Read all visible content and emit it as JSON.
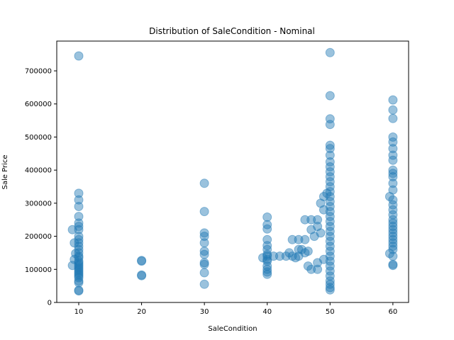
{
  "chart_data": {
    "type": "scatter",
    "title": "Distribution of SaleCondition - Nominal",
    "xlabel": "SaleCondition",
    "ylabel": "Sale Price",
    "xlim": [
      6.5,
      62.5
    ],
    "ylim": [
      0,
      790000
    ],
    "xticks": [
      10,
      20,
      30,
      40,
      50,
      60
    ],
    "yticks": [
      0,
      100000,
      200000,
      300000,
      400000,
      500000,
      600000,
      700000
    ],
    "grid": false,
    "legend": "none",
    "point_color": "#1f77b4",
    "point_alpha": 0.45,
    "series": [
      {
        "points": [
          [
            10,
            745000
          ],
          [
            10,
            330000
          ],
          [
            10,
            310000
          ],
          [
            10,
            290000
          ],
          [
            10,
            260000
          ],
          [
            10,
            240000
          ],
          [
            10,
            230000
          ],
          [
            10,
            220000
          ],
          [
            9,
            220000
          ],
          [
            10,
            200000
          ],
          [
            10,
            190000
          ],
          [
            10,
            180000
          ],
          [
            9.3,
            180000
          ],
          [
            10,
            170000
          ],
          [
            10,
            160000
          ],
          [
            10,
            150000
          ],
          [
            9.5,
            148000
          ],
          [
            10,
            140000
          ],
          [
            10,
            135000
          ],
          [
            9.3,
            130000
          ],
          [
            10,
            125000
          ],
          [
            10,
            120000
          ],
          [
            10,
            115000
          ],
          [
            9,
            112000
          ],
          [
            10,
            110000
          ],
          [
            10,
            105000
          ],
          [
            10,
            100000
          ],
          [
            10,
            95000
          ],
          [
            10,
            90000
          ],
          [
            10,
            85000
          ],
          [
            10,
            80000
          ],
          [
            10,
            75000
          ],
          [
            10,
            65000
          ],
          [
            10,
            60000
          ],
          [
            10,
            37000
          ],
          [
            10,
            35000
          ],
          [
            20,
            127000
          ],
          [
            20,
            125000
          ],
          [
            20,
            83000
          ],
          [
            20,
            81000
          ],
          [
            30,
            360000
          ],
          [
            30,
            275000
          ],
          [
            30,
            210000
          ],
          [
            30,
            200000
          ],
          [
            30,
            180000
          ],
          [
            30,
            155000
          ],
          [
            30,
            145000
          ],
          [
            30,
            120000
          ],
          [
            30,
            115000
          ],
          [
            30,
            90000
          ],
          [
            30,
            55000
          ],
          [
            40,
            258000
          ],
          [
            40,
            235000
          ],
          [
            40,
            222000
          ],
          [
            40,
            190000
          ],
          [
            40,
            172000
          ],
          [
            40,
            160000
          ],
          [
            40,
            145000
          ],
          [
            40,
            140000
          ],
          [
            39.3,
            135000
          ],
          [
            40,
            130000
          ],
          [
            40,
            125000
          ],
          [
            40,
            110000
          ],
          [
            40,
            100000
          ],
          [
            40,
            92000
          ],
          [
            40,
            85000
          ],
          [
            41,
            140000
          ],
          [
            42,
            140000
          ],
          [
            43,
            140000
          ],
          [
            44,
            140000
          ],
          [
            45,
            140000
          ],
          [
            43.5,
            150000
          ],
          [
            44.5,
            135000
          ],
          [
            44,
            190000
          ],
          [
            45,
            190000
          ],
          [
            46,
            190000
          ],
          [
            45.5,
            160000
          ],
          [
            46.5,
            155000
          ],
          [
            46,
            150000
          ],
          [
            45,
            160000
          ],
          [
            46,
            250000
          ],
          [
            47,
            250000
          ],
          [
            48,
            250000
          ],
          [
            47,
            220000
          ],
          [
            48,
            230000
          ],
          [
            47.5,
            200000
          ],
          [
            48.5,
            210000
          ],
          [
            47,
            100000
          ],
          [
            48,
            100000
          ],
          [
            46.5,
            110000
          ],
          [
            48,
            120000
          ],
          [
            49,
            130000
          ],
          [
            48.5,
            300000
          ],
          [
            49,
            320000
          ],
          [
            49.5,
            330000
          ],
          [
            49,
            280000
          ],
          [
            50,
            755000
          ],
          [
            50,
            625000
          ],
          [
            50,
            555000
          ],
          [
            50,
            538000
          ],
          [
            50,
            475000
          ],
          [
            50,
            465000
          ],
          [
            50,
            445000
          ],
          [
            50,
            425000
          ],
          [
            50,
            410000
          ],
          [
            50,
            395000
          ],
          [
            50,
            380000
          ],
          [
            50,
            365000
          ],
          [
            50,
            350000
          ],
          [
            50,
            335000
          ],
          [
            50,
            320000
          ],
          [
            50,
            305000
          ],
          [
            50,
            290000
          ],
          [
            50,
            275000
          ],
          [
            50,
            260000
          ],
          [
            50,
            245000
          ],
          [
            50,
            230000
          ],
          [
            50,
            215000
          ],
          [
            50,
            200000
          ],
          [
            50,
            185000
          ],
          [
            50,
            170000
          ],
          [
            50,
            155000
          ],
          [
            50,
            140000
          ],
          [
            50,
            125000
          ],
          [
            50,
            110000
          ],
          [
            50,
            95000
          ],
          [
            50,
            80000
          ],
          [
            50,
            65000
          ],
          [
            50,
            55000
          ],
          [
            50,
            45000
          ],
          [
            50,
            38000
          ],
          [
            60,
            612000
          ],
          [
            60,
            582000
          ],
          [
            60,
            556000
          ],
          [
            60,
            500000
          ],
          [
            60,
            485000
          ],
          [
            60,
            465000
          ],
          [
            60,
            445000
          ],
          [
            60,
            430000
          ],
          [
            60,
            400000
          ],
          [
            60,
            390000
          ],
          [
            60,
            380000
          ],
          [
            60,
            360000
          ],
          [
            60,
            340000
          ],
          [
            59.5,
            320000
          ],
          [
            60,
            310000
          ],
          [
            60,
            295000
          ],
          [
            60,
            280000
          ],
          [
            60,
            265000
          ],
          [
            60,
            250000
          ],
          [
            60,
            240000
          ],
          [
            60,
            230000
          ],
          [
            60,
            220000
          ],
          [
            60,
            210000
          ],
          [
            60,
            200000
          ],
          [
            60,
            190000
          ],
          [
            60,
            180000
          ],
          [
            60,
            170000
          ],
          [
            60,
            160000
          ],
          [
            59.5,
            148000
          ],
          [
            60,
            140000
          ],
          [
            60,
            115000
          ],
          [
            60,
            112000
          ]
        ]
      }
    ]
  }
}
